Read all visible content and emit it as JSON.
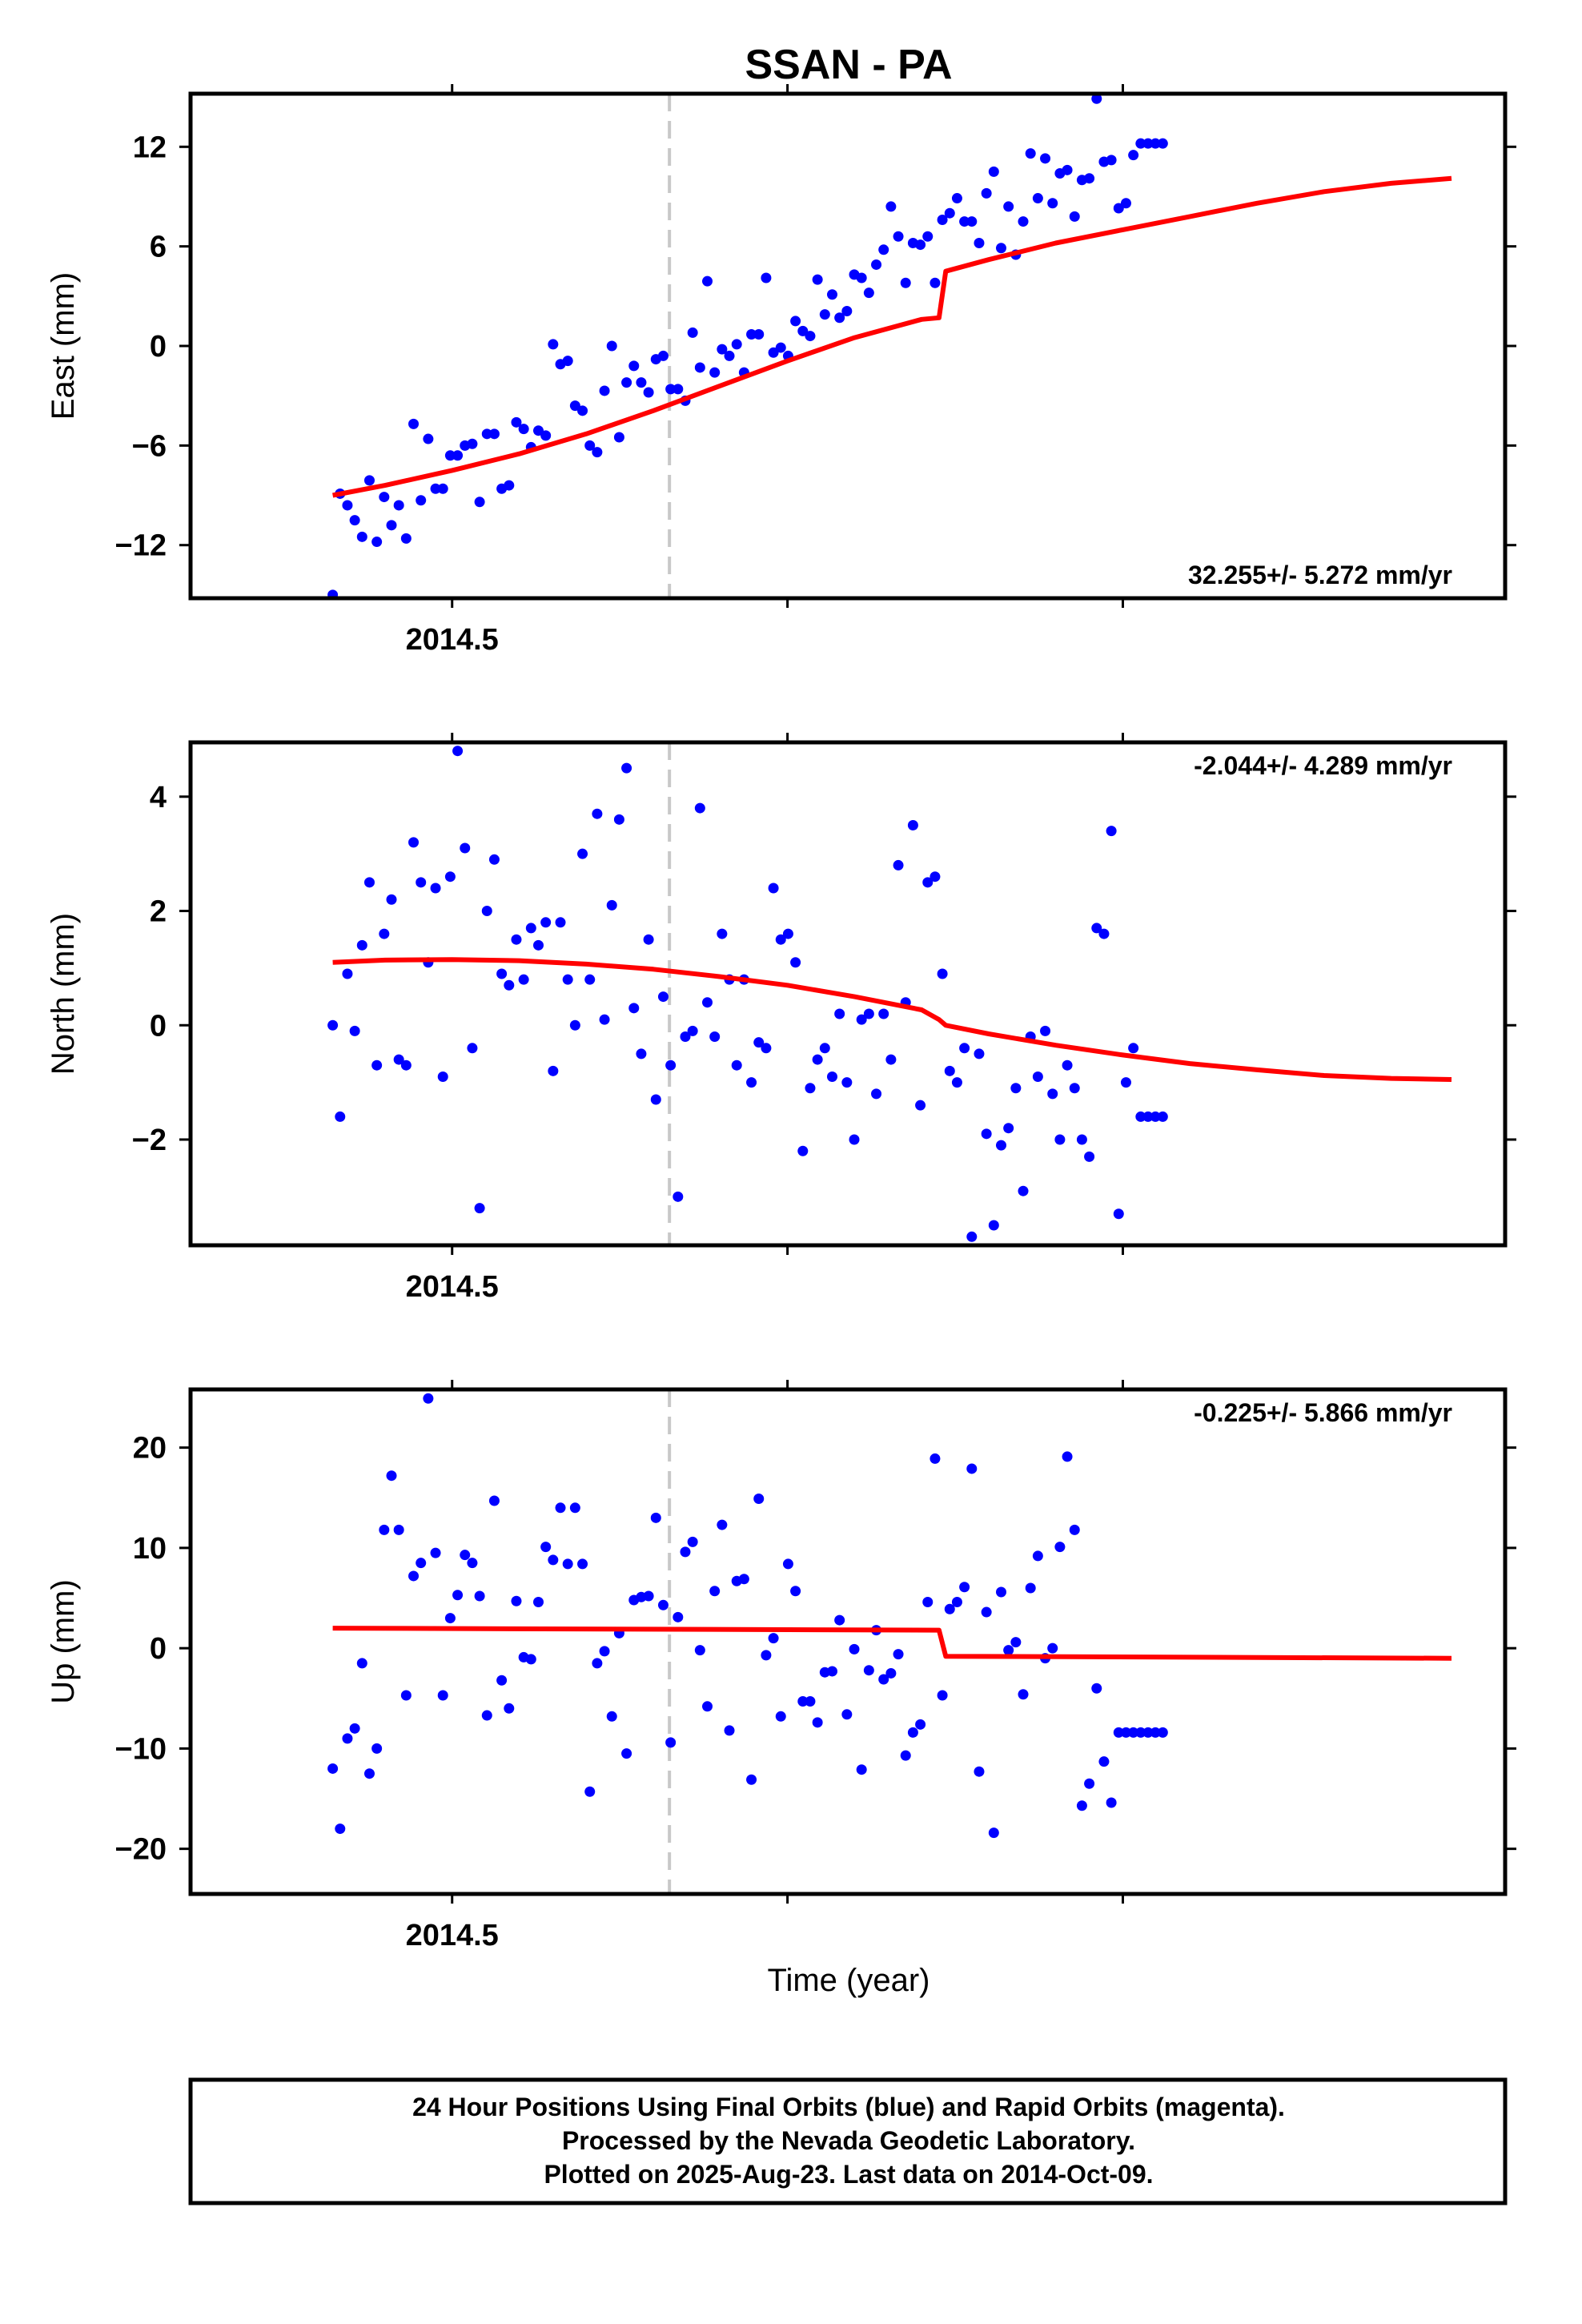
{
  "chart_data": {
    "type": "scatter",
    "title": "SSAN - PA",
    "xlabel": "Time (year)",
    "x_tick_label": "2014.5",
    "break_year": 2014.662,
    "colors": {
      "points": "#0000ff",
      "model": "#ff0000",
      "break_line": "#c8c8c8"
    },
    "panels": [
      {
        "name": "east",
        "ylabel": "East (mm)",
        "ylim": [
          -15.2,
          15.2
        ],
        "yticks": [
          -12,
          -6,
          0,
          6,
          12
        ],
        "ytick_labels": [
          "−12",
          "−6",
          "0",
          "6",
          "12"
        ],
        "rate_text": "32.255+/- 5.272 mm/yr",
        "rate_position": "bottom-right",
        "model": [
          [
            2014.411,
            -9.0
          ],
          [
            2014.45,
            -8.4
          ],
          [
            2014.5,
            -7.5
          ],
          [
            2014.55,
            -6.5
          ],
          [
            2014.6,
            -5.3
          ],
          [
            2014.65,
            -3.9
          ],
          [
            2014.7,
            -2.4
          ],
          [
            2014.75,
            -0.9
          ],
          [
            2014.8,
            0.5
          ],
          [
            2014.85,
            1.6
          ],
          [
            2014.863,
            1.7
          ],
          [
            2014.868,
            4.5
          ],
          [
            2014.9,
            5.2
          ],
          [
            2014.95,
            6.2
          ],
          [
            2015.0,
            7.0
          ],
          [
            2015.05,
            7.8
          ],
          [
            2015.1,
            8.6
          ],
          [
            2015.15,
            9.3
          ],
          [
            2015.2,
            9.8
          ],
          [
            2015.245,
            10.1
          ]
        ]
      },
      {
        "name": "north",
        "ylabel": "North (mm)",
        "ylim": [
          -3.85,
          4.95
        ],
        "yticks": [
          -2,
          0,
          2,
          4
        ],
        "ytick_labels": [
          "−2",
          "0",
          "2",
          "4"
        ],
        "rate_text": "-2.044+/- 4.289 mm/yr",
        "rate_position": "top-right",
        "model": [
          [
            2014.411,
            1.1
          ],
          [
            2014.45,
            1.14
          ],
          [
            2014.5,
            1.15
          ],
          [
            2014.55,
            1.13
          ],
          [
            2014.6,
            1.07
          ],
          [
            2014.65,
            0.98
          ],
          [
            2014.7,
            0.85
          ],
          [
            2014.75,
            0.7
          ],
          [
            2014.8,
            0.5
          ],
          [
            2014.85,
            0.27
          ],
          [
            2014.863,
            0.1
          ],
          [
            2014.868,
            0.0
          ],
          [
            2014.9,
            -0.15
          ],
          [
            2014.95,
            -0.35
          ],
          [
            2015.0,
            -0.52
          ],
          [
            2015.05,
            -0.67
          ],
          [
            2015.1,
            -0.78
          ],
          [
            2015.15,
            -0.88
          ],
          [
            2015.2,
            -0.93
          ],
          [
            2015.245,
            -0.95
          ]
        ]
      },
      {
        "name": "up",
        "ylabel": "Up (mm)",
        "ylim": [
          -24.5,
          25.8
        ],
        "yticks": [
          -20,
          -10,
          0,
          10,
          20
        ],
        "ytick_labels": [
          "−20",
          "−10",
          "0",
          "10",
          "20"
        ],
        "rate_text": "-0.225+/- 5.866 mm/yr",
        "rate_position": "top-right",
        "model": [
          [
            2014.411,
            2.0
          ],
          [
            2014.863,
            1.8
          ],
          [
            2014.868,
            -0.8
          ],
          [
            2015.245,
            -1.0
          ]
        ]
      }
    ],
    "x_days": [
      0,
      2,
      4,
      6,
      8,
      10,
      12,
      14,
      16,
      18,
      20,
      22,
      24,
      26,
      28,
      30,
      32,
      34,
      36,
      38,
      40,
      42,
      44,
      46,
      48,
      50,
      52,
      54,
      56,
      58,
      60,
      62,
      64,
      66,
      68,
      70,
      72,
      74,
      76,
      78,
      80,
      82,
      84,
      86,
      88,
      90,
      92,
      94,
      96,
      98,
      100,
      102,
      104,
      106,
      108,
      110,
      112,
      114,
      116,
      118,
      120,
      122,
      124,
      126,
      128,
      130,
      132,
      134,
      136,
      138,
      140,
      142,
      144,
      146,
      148,
      150,
      152,
      154,
      156,
      158,
      160,
      162,
      164,
      166,
      168,
      170,
      172,
      174,
      176,
      178,
      180,
      182,
      184,
      186,
      188,
      190,
      192,
      194,
      196,
      198,
      200,
      202,
      204,
      206,
      208,
      210,
      212,
      214,
      216,
      218,
      220,
      222,
      224,
      226
    ],
    "x_origin_year": 2014.411,
    "east_values": [
      -15.0,
      -8.9,
      -9.6,
      -10.5,
      -11.5,
      -8.1,
      -11.8,
      -9.1,
      -10.8,
      -9.6,
      -11.6,
      -4.7,
      -9.3,
      -5.6,
      -8.6,
      -8.6,
      -6.6,
      -6.6,
      -6.0,
      -5.9,
      -9.4,
      -5.3,
      -5.3,
      -8.6,
      -8.4,
      -4.6,
      -5.0,
      -6.1,
      -5.1,
      -5.4,
      0.1,
      -1.1,
      -0.9,
      -3.6,
      -3.9,
      -6.0,
      -6.4,
      -2.7,
      0.0,
      -5.5,
      -2.2,
      -1.2,
      -2.2,
      -2.8,
      -0.8,
      -0.6,
      -2.6,
      -2.6,
      -3.3,
      0.8,
      -1.3,
      3.9,
      -1.6,
      -0.2,
      -0.6,
      0.1,
      -1.6,
      0.7,
      0.7,
      4.1,
      -0.4,
      -0.1,
      -0.6,
      1.5,
      0.9,
      0.6,
      4.0,
      1.9,
      3.1,
      1.7,
      2.1,
      4.3,
      4.1,
      3.2,
      4.9,
      5.8,
      8.4,
      6.6,
      3.8,
      6.2,
      6.1,
      6.6,
      3.8,
      7.6,
      8.0,
      8.9,
      7.5,
      7.5,
      6.2,
      9.2,
      10.5,
      5.9,
      8.4,
      5.5,
      7.5,
      11.6,
      8.9,
      11.3,
      8.6,
      10.4,
      10.6,
      7.8,
      10.0,
      10.1,
      14.9,
      11.1,
      11.2,
      8.3,
      8.6,
      11.5,
      12.2,
      12.2,
      12.2,
      12.2
    ],
    "north_values": [
      0.0,
      -1.6,
      0.9,
      -0.1,
      1.4,
      2.5,
      -0.7,
      1.6,
      2.2,
      -0.6,
      -0.7,
      3.2,
      2.5,
      1.1,
      2.4,
      -0.9,
      2.6,
      4.8,
      3.1,
      -0.4,
      -3.2,
      2.0,
      2.9,
      0.9,
      0.7,
      1.5,
      0.8,
      1.7,
      1.4,
      1.8,
      -0.8,
      1.8,
      0.8,
      0.0,
      3.0,
      0.8,
      3.7,
      0.1,
      2.1,
      3.6,
      4.5,
      0.3,
      -0.5,
      1.5,
      -1.3,
      0.5,
      -0.7,
      -3.0,
      -0.2,
      -0.1,
      3.8,
      0.4,
      -0.2,
      1.6,
      0.8,
      -0.7,
      0.8,
      -1.0,
      -0.3,
      -0.4,
      2.4,
      1.5,
      1.6,
      1.1,
      -2.2,
      -1.1,
      -0.6,
      -0.4,
      -0.9,
      0.2,
      -1.0,
      -2.0,
      0.1,
      0.2,
      -1.2,
      0.2,
      -0.6,
      2.8,
      0.4,
      3.5,
      -1.4,
      2.5,
      2.6,
      0.9,
      -0.8,
      -1.0,
      -0.4,
      -3.7,
      -0.5,
      -1.9,
      -3.5,
      -2.1,
      -1.8,
      -1.1,
      -2.9,
      -0.2,
      -0.9,
      -0.1,
      -1.2,
      -2.0,
      -0.7,
      -1.1,
      -2.0,
      -2.3,
      1.7,
      1.6,
      3.4,
      -3.3,
      -1.0,
      -0.4,
      -1.6,
      -1.6,
      -1.6,
      -1.6
    ],
    "up_values": [
      -12.0,
      -18.0,
      -9.0,
      -8.0,
      -1.5,
      -12.5,
      -10.0,
      11.8,
      17.2,
      11.8,
      -4.7,
      7.2,
      8.5,
      24.9,
      9.5,
      -4.7,
      3.0,
      5.3,
      9.3,
      8.5,
      5.2,
      -6.7,
      14.7,
      -3.2,
      -6.0,
      4.7,
      -0.9,
      -1.1,
      4.6,
      10.1,
      8.8,
      14.0,
      8.4,
      14.0,
      8.4,
      -14.3,
      -1.5,
      -0.3,
      -6.8,
      1.5,
      -10.5,
      4.8,
      5.1,
      5.2,
      13.0,
      4.3,
      -9.4,
      3.1,
      9.6,
      10.6,
      -0.2,
      -5.8,
      5.7,
      12.3,
      -8.2,
      6.7,
      6.9,
      -13.1,
      14.9,
      -0.7,
      1.0,
      -6.8,
      8.4,
      5.7,
      -5.3,
      -5.3,
      -7.4,
      -2.4,
      -2.3,
      2.8,
      -6.6,
      -0.1,
      -12.1,
      -2.2,
      1.8,
      -3.1,
      -2.5,
      -0.6,
      -10.7,
      -8.4,
      -7.6,
      4.6,
      18.9,
      -4.7,
      3.9,
      4.6,
      6.1,
      17.9,
      -12.3,
      3.6,
      -18.4,
      5.6,
      -0.2,
      0.6,
      -4.6,
      6.0,
      9.2,
      -1.0,
      0.0,
      10.1,
      19.1,
      11.8,
      -15.7,
      -13.5,
      -4.0,
      -11.3,
      -15.4,
      -8.4,
      -8.4,
      -8.4,
      -8.4,
      -8.4,
      -8.4,
      -8.4
    ],
    "footer_lines": [
      "24 Hour Positions Using Final Orbits (blue) and Rapid Orbits (magenta).",
      "Processed by the Nevada Geodetic Laboratory.",
      "Plotted on 2025-Aug-23. Last data on 2014-Oct-09."
    ]
  }
}
